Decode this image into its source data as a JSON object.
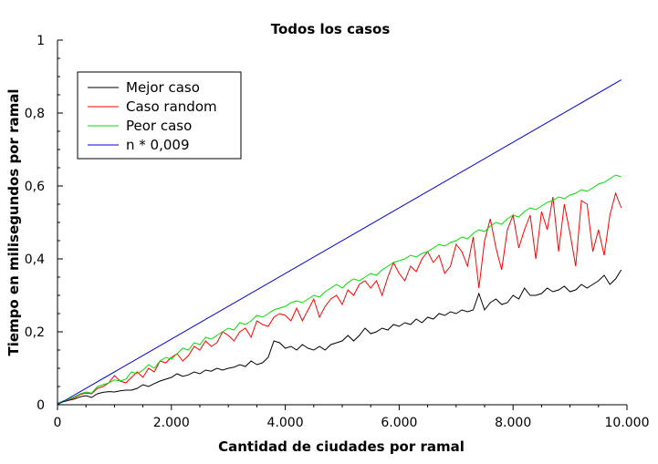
{
  "chart_data": {
    "type": "line",
    "title": "Todos los casos",
    "xlabel": "Cantidad de ciudades por ramal",
    "ylabel": "Tiempo en milisegundos por ramal",
    "xlim": [
      0,
      10000
    ],
    "ylim": [
      0,
      1
    ],
    "x_ticks": [
      0,
      2000,
      4000,
      6000,
      8000,
      10000
    ],
    "x_tick_labels": [
      "0",
      "2.000",
      "4.000",
      "6.000",
      "8.000",
      "10.000"
    ],
    "y_ticks": [
      0,
      0.2,
      0.4,
      0.6,
      0.8,
      1
    ],
    "y_tick_labels": [
      "0",
      "0,2",
      "0,4",
      "0,6",
      "0,8",
      "1"
    ],
    "grid": false,
    "legend_position": "top-left",
    "series": [
      {
        "name": "Mejor caso",
        "color": "#000000",
        "points": [
          [
            0,
            0.003
          ],
          [
            100,
            0.008
          ],
          [
            200,
            0.012
          ],
          [
            300,
            0.016
          ],
          [
            400,
            0.022
          ],
          [
            500,
            0.025
          ],
          [
            600,
            0.02
          ],
          [
            700,
            0.03
          ],
          [
            800,
            0.034
          ],
          [
            900,
            0.036
          ],
          [
            1000,
            0.035
          ],
          [
            1100,
            0.038
          ],
          [
            1200,
            0.04
          ],
          [
            1300,
            0.04
          ],
          [
            1400,
            0.045
          ],
          [
            1500,
            0.055
          ],
          [
            1600,
            0.05
          ],
          [
            1700,
            0.058
          ],
          [
            1800,
            0.065
          ],
          [
            1900,
            0.07
          ],
          [
            2000,
            0.075
          ],
          [
            2100,
            0.085
          ],
          [
            2200,
            0.078
          ],
          [
            2300,
            0.082
          ],
          [
            2400,
            0.09
          ],
          [
            2500,
            0.085
          ],
          [
            2600,
            0.095
          ],
          [
            2700,
            0.092
          ],
          [
            2800,
            0.1
          ],
          [
            2900,
            0.095
          ],
          [
            3000,
            0.1
          ],
          [
            3100,
            0.103
          ],
          [
            3200,
            0.11
          ],
          [
            3300,
            0.105
          ],
          [
            3400,
            0.12
          ],
          [
            3500,
            0.11
          ],
          [
            3600,
            0.115
          ],
          [
            3700,
            0.13
          ],
          [
            3800,
            0.175
          ],
          [
            3900,
            0.17
          ],
          [
            4000,
            0.155
          ],
          [
            4100,
            0.16
          ],
          [
            4200,
            0.15
          ],
          [
            4300,
            0.165
          ],
          [
            4400,
            0.155
          ],
          [
            4500,
            0.15
          ],
          [
            4600,
            0.16
          ],
          [
            4700,
            0.15
          ],
          [
            4800,
            0.165
          ],
          [
            4900,
            0.17
          ],
          [
            5000,
            0.175
          ],
          [
            5100,
            0.19
          ],
          [
            5200,
            0.175
          ],
          [
            5300,
            0.19
          ],
          [
            5400,
            0.21
          ],
          [
            5500,
            0.195
          ],
          [
            5600,
            0.2
          ],
          [
            5700,
            0.21
          ],
          [
            5800,
            0.205
          ],
          [
            5900,
            0.22
          ],
          [
            6000,
            0.215
          ],
          [
            6100,
            0.225
          ],
          [
            6200,
            0.22
          ],
          [
            6300,
            0.235
          ],
          [
            6400,
            0.225
          ],
          [
            6500,
            0.24
          ],
          [
            6600,
            0.235
          ],
          [
            6700,
            0.25
          ],
          [
            6800,
            0.245
          ],
          [
            6900,
            0.255
          ],
          [
            7000,
            0.25
          ],
          [
            7100,
            0.26
          ],
          [
            7200,
            0.255
          ],
          [
            7300,
            0.26
          ],
          [
            7400,
            0.305
          ],
          [
            7500,
            0.26
          ],
          [
            7600,
            0.28
          ],
          [
            7700,
            0.29
          ],
          [
            7800,
            0.275
          ],
          [
            7900,
            0.28
          ],
          [
            8000,
            0.3
          ],
          [
            8100,
            0.29
          ],
          [
            8200,
            0.32
          ],
          [
            8300,
            0.3
          ],
          [
            8400,
            0.3
          ],
          [
            8500,
            0.305
          ],
          [
            8600,
            0.32
          ],
          [
            8700,
            0.31
          ],
          [
            8800,
            0.315
          ],
          [
            8900,
            0.325
          ],
          [
            9000,
            0.31
          ],
          [
            9100,
            0.315
          ],
          [
            9200,
            0.33
          ],
          [
            9300,
            0.32
          ],
          [
            9400,
            0.33
          ],
          [
            9500,
            0.34
          ],
          [
            9600,
            0.355
          ],
          [
            9700,
            0.33
          ],
          [
            9800,
            0.345
          ],
          [
            9900,
            0.37
          ]
        ]
      },
      {
        "name": "Caso random",
        "color": "#ff0000",
        "points": [
          [
            0,
            0.004
          ],
          [
            100,
            0.01
          ],
          [
            200,
            0.014
          ],
          [
            300,
            0.02
          ],
          [
            400,
            0.028
          ],
          [
            500,
            0.032
          ],
          [
            600,
            0.03
          ],
          [
            700,
            0.045
          ],
          [
            800,
            0.05
          ],
          [
            900,
            0.06
          ],
          [
            1000,
            0.08
          ],
          [
            1100,
            0.065
          ],
          [
            1200,
            0.06
          ],
          [
            1300,
            0.075
          ],
          [
            1400,
            0.09
          ],
          [
            1500,
            0.075
          ],
          [
            1600,
            0.1
          ],
          [
            1700,
            0.09
          ],
          [
            1800,
            0.12
          ],
          [
            1900,
            0.115
          ],
          [
            2000,
            0.13
          ],
          [
            2100,
            0.14
          ],
          [
            2200,
            0.12
          ],
          [
            2300,
            0.135
          ],
          [
            2400,
            0.16
          ],
          [
            2500,
            0.15
          ],
          [
            2600,
            0.175
          ],
          [
            2700,
            0.16
          ],
          [
            2800,
            0.17
          ],
          [
            2900,
            0.2
          ],
          [
            3000,
            0.19
          ],
          [
            3100,
            0.175
          ],
          [
            3200,
            0.2
          ],
          [
            3300,
            0.21
          ],
          [
            3400,
            0.185
          ],
          [
            3500,
            0.23
          ],
          [
            3600,
            0.22
          ],
          [
            3700,
            0.215
          ],
          [
            3800,
            0.24
          ],
          [
            3900,
            0.25
          ],
          [
            4000,
            0.245
          ],
          [
            4100,
            0.23
          ],
          [
            4200,
            0.265
          ],
          [
            4300,
            0.23
          ],
          [
            4400,
            0.26
          ],
          [
            4500,
            0.29
          ],
          [
            4600,
            0.24
          ],
          [
            4700,
            0.27
          ],
          [
            4800,
            0.29
          ],
          [
            4900,
            0.3
          ],
          [
            5000,
            0.275
          ],
          [
            5100,
            0.315
          ],
          [
            5200,
            0.3
          ],
          [
            5300,
            0.33
          ],
          [
            5400,
            0.34
          ],
          [
            5500,
            0.32
          ],
          [
            5600,
            0.34
          ],
          [
            5700,
            0.3
          ],
          [
            5800,
            0.35
          ],
          [
            5900,
            0.39
          ],
          [
            6000,
            0.36
          ],
          [
            6100,
            0.34
          ],
          [
            6200,
            0.38
          ],
          [
            6300,
            0.365
          ],
          [
            6400,
            0.4
          ],
          [
            6500,
            0.42
          ],
          [
            6600,
            0.39
          ],
          [
            6700,
            0.41
          ],
          [
            6800,
            0.36
          ],
          [
            6900,
            0.38
          ],
          [
            7000,
            0.44
          ],
          [
            7100,
            0.42
          ],
          [
            7200,
            0.38
          ],
          [
            7300,
            0.46
          ],
          [
            7400,
            0.32
          ],
          [
            7500,
            0.45
          ],
          [
            7600,
            0.51
          ],
          [
            7700,
            0.43
          ],
          [
            7800,
            0.37
          ],
          [
            7900,
            0.48
          ],
          [
            8000,
            0.52
          ],
          [
            8100,
            0.43
          ],
          [
            8200,
            0.48
          ],
          [
            8300,
            0.52
          ],
          [
            8400,
            0.4
          ],
          [
            8500,
            0.53
          ],
          [
            8600,
            0.48
          ],
          [
            8700,
            0.57
          ],
          [
            8800,
            0.42
          ],
          [
            8900,
            0.55
          ],
          [
            9000,
            0.47
          ],
          [
            9100,
            0.38
          ],
          [
            9200,
            0.56
          ],
          [
            9300,
            0.55
          ],
          [
            9400,
            0.42
          ],
          [
            9500,
            0.48
          ],
          [
            9600,
            0.41
          ],
          [
            9700,
            0.52
          ],
          [
            9800,
            0.58
          ],
          [
            9900,
            0.54
          ]
        ]
      },
      {
        "name": "Peor caso",
        "color": "#00dd00",
        "points": [
          [
            0,
            0.004
          ],
          [
            100,
            0.01
          ],
          [
            200,
            0.015
          ],
          [
            300,
            0.022
          ],
          [
            400,
            0.03
          ],
          [
            500,
            0.035
          ],
          [
            600,
            0.032
          ],
          [
            700,
            0.05
          ],
          [
            800,
            0.055
          ],
          [
            900,
            0.06
          ],
          [
            1000,
            0.068
          ],
          [
            1100,
            0.065
          ],
          [
            1200,
            0.07
          ],
          [
            1300,
            0.09
          ],
          [
            1400,
            0.085
          ],
          [
            1500,
            0.095
          ],
          [
            1600,
            0.11
          ],
          [
            1700,
            0.1
          ],
          [
            1800,
            0.12
          ],
          [
            1900,
            0.13
          ],
          [
            2000,
            0.125
          ],
          [
            2100,
            0.14
          ],
          [
            2200,
            0.155
          ],
          [
            2300,
            0.15
          ],
          [
            2400,
            0.17
          ],
          [
            2500,
            0.165
          ],
          [
            2600,
            0.185
          ],
          [
            2700,
            0.18
          ],
          [
            2800,
            0.19
          ],
          [
            2900,
            0.2
          ],
          [
            3000,
            0.21
          ],
          [
            3100,
            0.205
          ],
          [
            3200,
            0.225
          ],
          [
            3300,
            0.22
          ],
          [
            3400,
            0.23
          ],
          [
            3500,
            0.245
          ],
          [
            3600,
            0.24
          ],
          [
            3700,
            0.25
          ],
          [
            3800,
            0.26
          ],
          [
            3900,
            0.265
          ],
          [
            4000,
            0.27
          ],
          [
            4100,
            0.28
          ],
          [
            4200,
            0.285
          ],
          [
            4300,
            0.28
          ],
          [
            4400,
            0.29
          ],
          [
            4500,
            0.3
          ],
          [
            4600,
            0.295
          ],
          [
            4700,
            0.31
          ],
          [
            4800,
            0.32
          ],
          [
            4900,
            0.33
          ],
          [
            5000,
            0.32
          ],
          [
            5100,
            0.335
          ],
          [
            5200,
            0.345
          ],
          [
            5300,
            0.34
          ],
          [
            5400,
            0.35
          ],
          [
            5500,
            0.36
          ],
          [
            5600,
            0.355
          ],
          [
            5700,
            0.37
          ],
          [
            5800,
            0.38
          ],
          [
            5900,
            0.39
          ],
          [
            6000,
            0.395
          ],
          [
            6100,
            0.4
          ],
          [
            6200,
            0.41
          ],
          [
            6300,
            0.405
          ],
          [
            6400,
            0.415
          ],
          [
            6500,
            0.42
          ],
          [
            6600,
            0.43
          ],
          [
            6700,
            0.44
          ],
          [
            6800,
            0.435
          ],
          [
            6900,
            0.445
          ],
          [
            7000,
            0.45
          ],
          [
            7100,
            0.46
          ],
          [
            7200,
            0.455
          ],
          [
            7300,
            0.47
          ],
          [
            7400,
            0.48
          ],
          [
            7500,
            0.475
          ],
          [
            7600,
            0.49
          ],
          [
            7700,
            0.5
          ],
          [
            7800,
            0.495
          ],
          [
            7900,
            0.51
          ],
          [
            8000,
            0.52
          ],
          [
            8100,
            0.515
          ],
          [
            8200,
            0.53
          ],
          [
            8300,
            0.54
          ],
          [
            8400,
            0.535
          ],
          [
            8500,
            0.545
          ],
          [
            8600,
            0.555
          ],
          [
            8700,
            0.56
          ],
          [
            8800,
            0.57
          ],
          [
            8900,
            0.565
          ],
          [
            9000,
            0.575
          ],
          [
            9100,
            0.58
          ],
          [
            9200,
            0.59
          ],
          [
            9300,
            0.585
          ],
          [
            9400,
            0.595
          ],
          [
            9500,
            0.605
          ],
          [
            9600,
            0.61
          ],
          [
            9700,
            0.62
          ],
          [
            9800,
            0.63
          ],
          [
            9900,
            0.625
          ]
        ]
      },
      {
        "name": "n * 0,009",
        "color": "#0000cc",
        "points": [
          [
            0,
            0
          ],
          [
            9900,
            0.891
          ]
        ]
      }
    ]
  }
}
